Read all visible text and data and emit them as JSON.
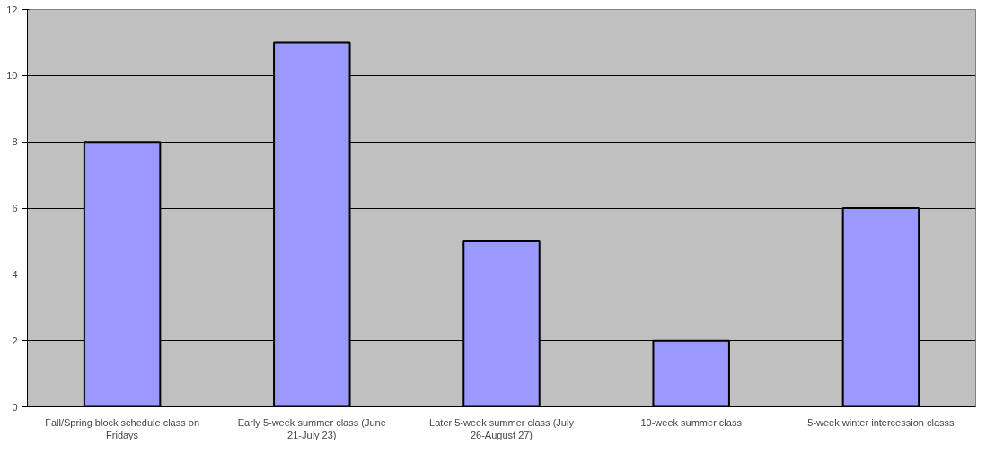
{
  "chart_data": {
    "type": "bar",
    "categories": [
      "Fall/Spring block schedule class on Fridays",
      "Early 5-week summer class (June 21-July 23)",
      "Later 5-week summer class (July 26-August 27)",
      "10-week summer class",
      "5-week winter intercession classs"
    ],
    "values": [
      8,
      11,
      5,
      2,
      6
    ],
    "color": "#9999ff",
    "ylim": [
      0,
      12
    ],
    "yticks": [
      0,
      2,
      4,
      6,
      8,
      10,
      12
    ],
    "grid": "y"
  }
}
